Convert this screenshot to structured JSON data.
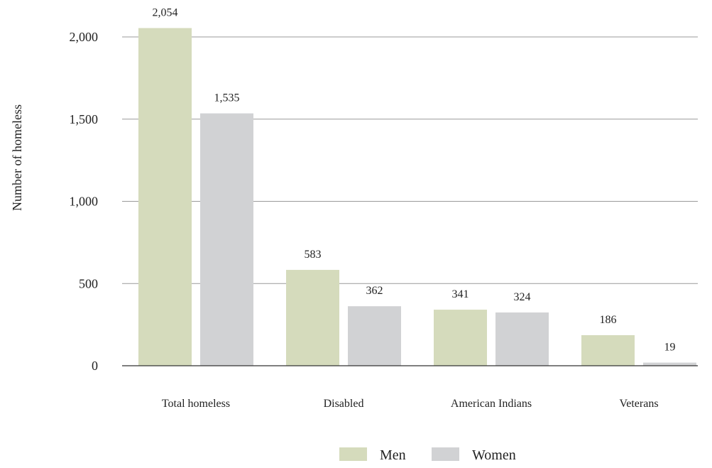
{
  "chart_data": {
    "type": "bar",
    "title": "",
    "xlabel": "",
    "ylabel": "Number of homeless",
    "categories": [
      "Total homeless",
      "Disabled",
      "American Indians",
      "Veterans"
    ],
    "series": [
      {
        "name": "Men",
        "color": "#d5dbbc",
        "values": [
          2054,
          583,
          341,
          186
        ],
        "labels": [
          "2,054",
          "583",
          "341",
          "186"
        ]
      },
      {
        "name": "Women",
        "color": "#d1d2d4",
        "values": [
          1535,
          362,
          324,
          19
        ],
        "labels": [
          "1,535",
          "362",
          "324",
          "19"
        ]
      }
    ],
    "ylim": [
      0,
      2000
    ],
    "yticks": [
      {
        "value": 0,
        "label": "0"
      },
      {
        "value": 500,
        "label": "500"
      },
      {
        "value": 1000,
        "label": "1,000"
      },
      {
        "value": 1500,
        "label": "1,500"
      },
      {
        "value": 2000,
        "label": "2,000"
      }
    ],
    "grid": true,
    "legend_position": "bottom-center"
  }
}
